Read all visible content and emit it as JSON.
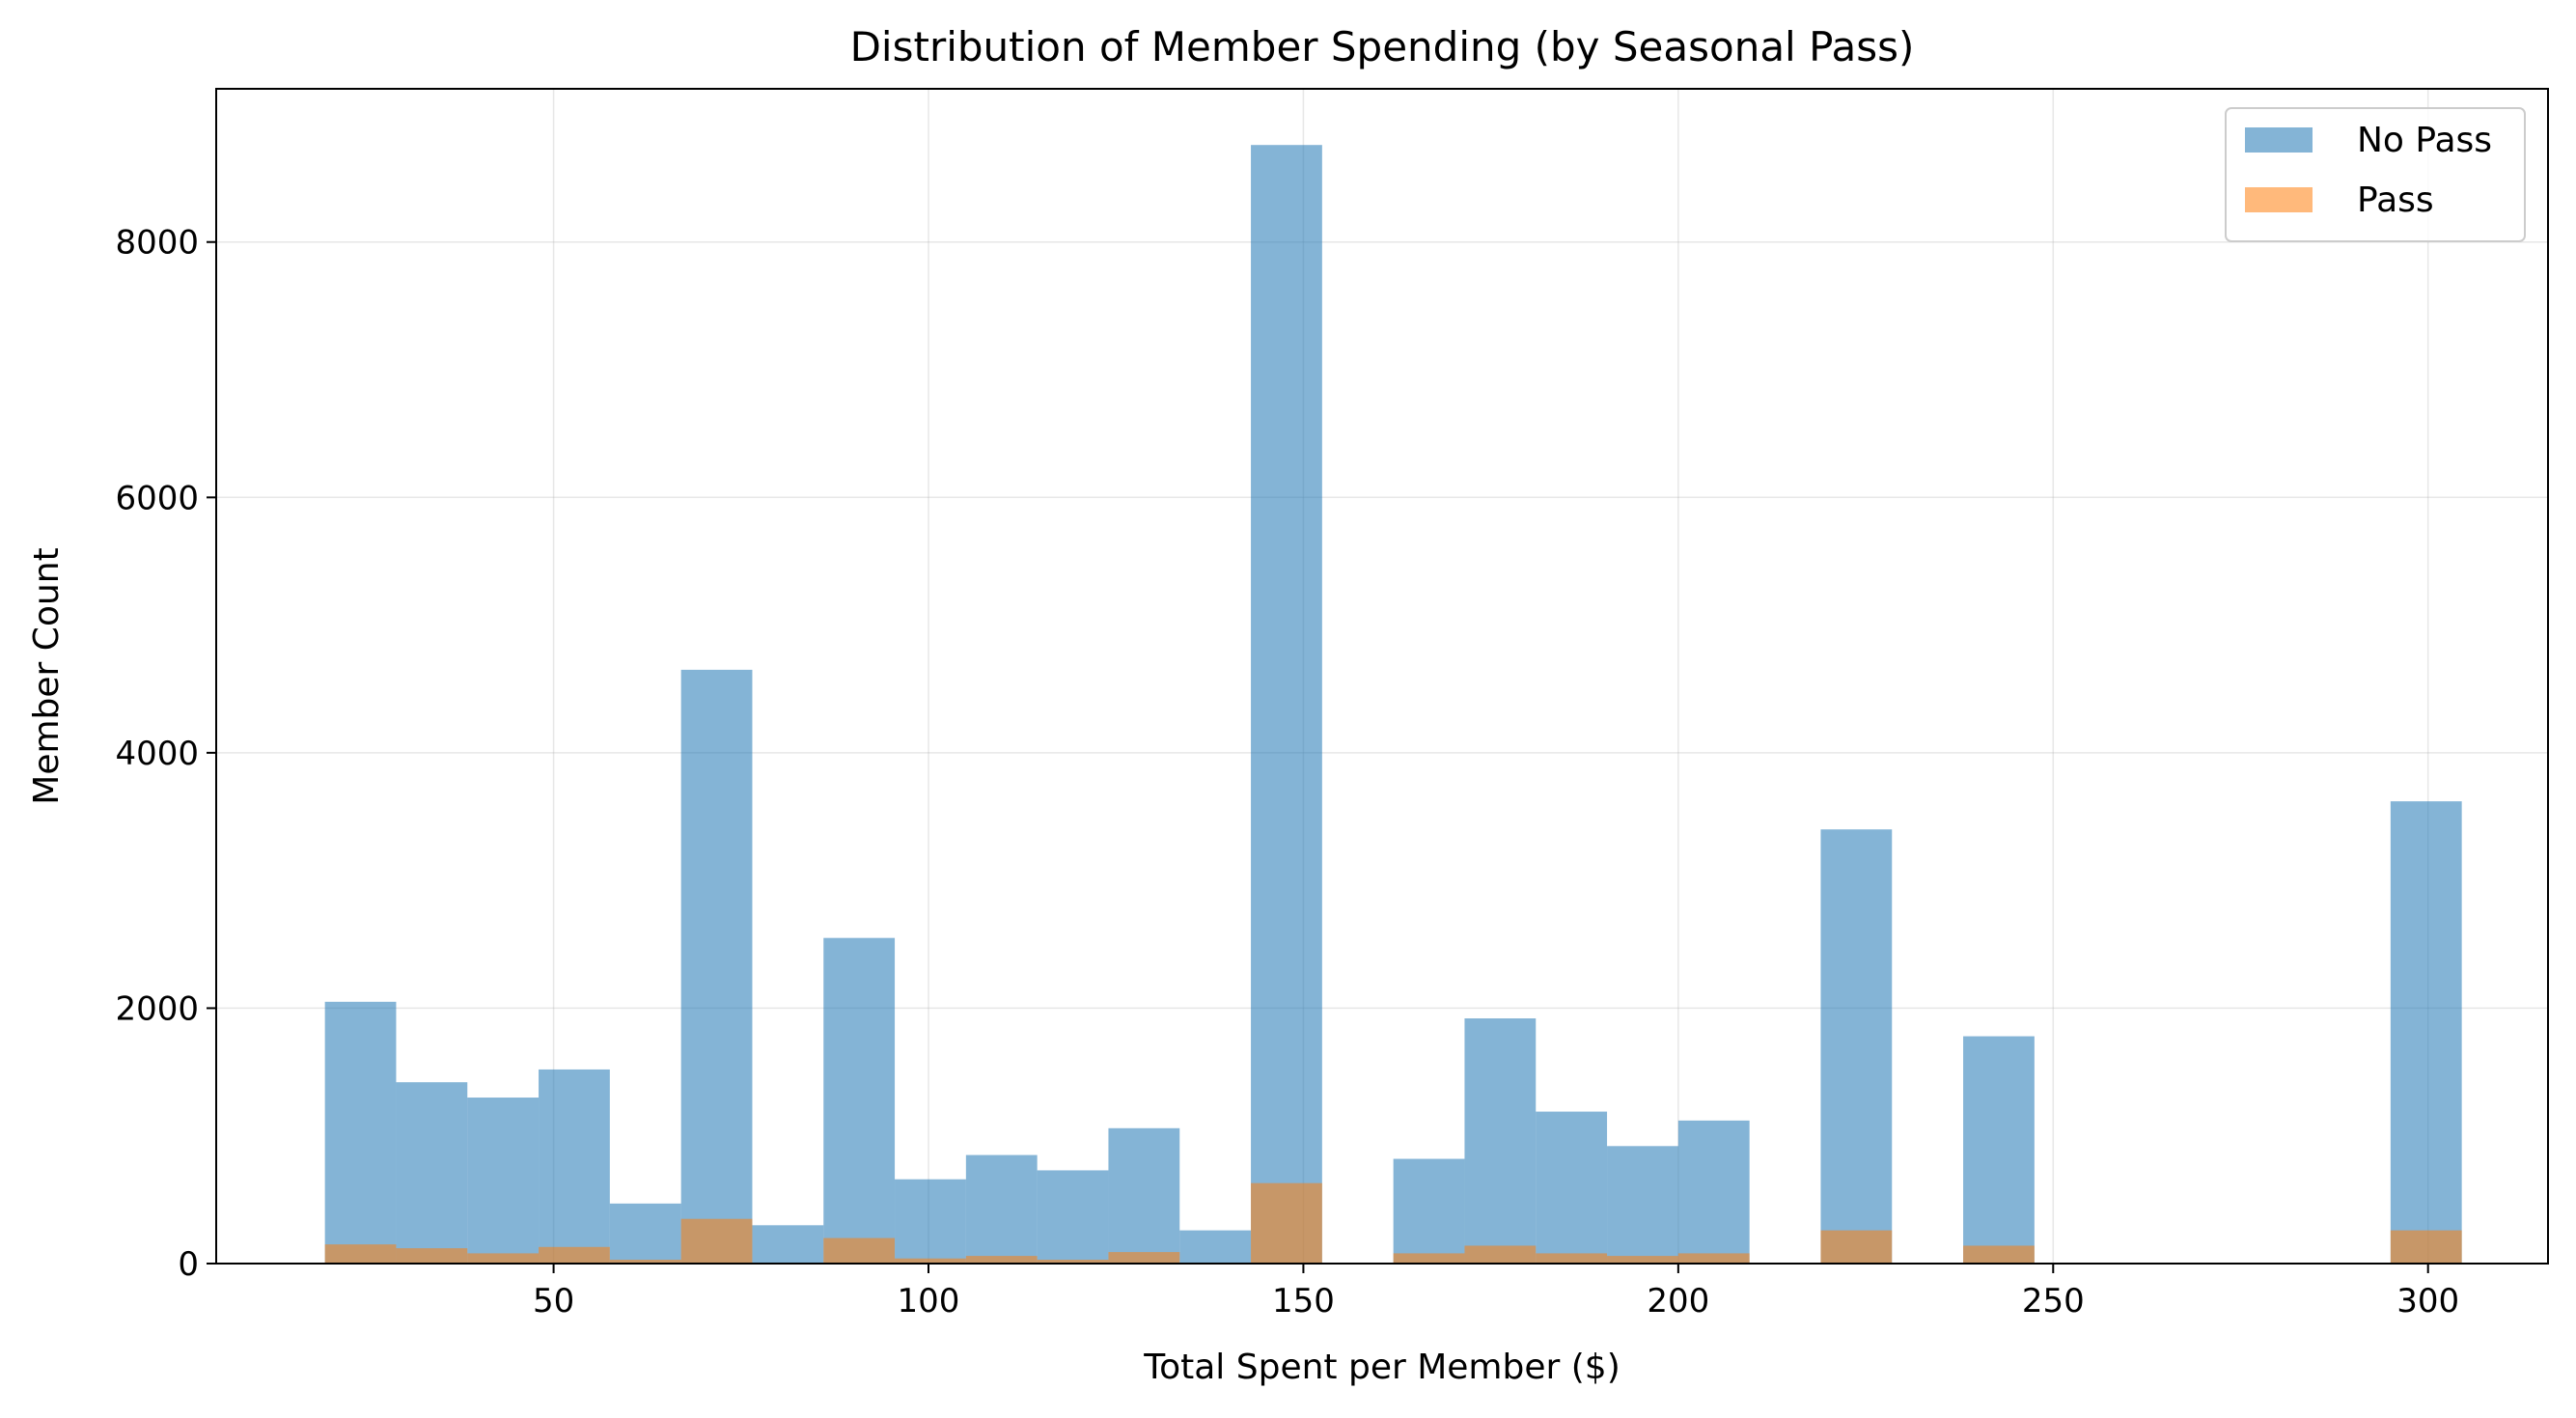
{
  "chart_data": {
    "type": "bar",
    "title": "Distribution of Member Spending (by Seasonal Pass)",
    "xlabel": "Total Spent per Member ($)",
    "ylabel": "Member Count",
    "xlim": [
      5,
      316
    ],
    "ylim": [
      0,
      9200
    ],
    "xticks": [
      50,
      100,
      150,
      200,
      250,
      300
    ],
    "yticks": [
      0,
      2000,
      4000,
      6000,
      8000
    ],
    "grid": true,
    "legend_position": "top-right",
    "bin_edges": [
      19.5,
      29.0,
      38.5,
      48.0,
      57.5,
      67.0,
      76.5,
      86.0,
      95.5,
      105.0,
      114.5,
      124.0,
      133.5,
      143.0,
      152.5,
      162.0,
      171.5,
      181.0,
      190.5,
      200.0,
      209.5,
      219.0,
      228.5,
      238.0,
      247.5,
      257.0,
      266.5,
      276.0,
      285.5,
      295.0,
      304.5
    ],
    "series": [
      {
        "name": "No Pass",
        "color": "#1f77b4",
        "opacity": 0.55,
        "values": [
          2050,
          1420,
          1300,
          1520,
          470,
          4650,
          300,
          2550,
          660,
          850,
          730,
          1060,
          260,
          8760,
          0,
          820,
          1920,
          1190,
          920,
          1120,
          0,
          3400,
          0,
          1780,
          0,
          0,
          0,
          0,
          0,
          3620
        ]
      },
      {
        "name": "Pass",
        "color": "#ff7f0e",
        "opacity": 0.55,
        "values": [
          150,
          120,
          80,
          130,
          30,
          350,
          0,
          200,
          40,
          60,
          30,
          90,
          0,
          630,
          0,
          80,
          140,
          80,
          60,
          80,
          0,
          260,
          0,
          140,
          0,
          0,
          0,
          0,
          0,
          260
        ]
      }
    ]
  }
}
